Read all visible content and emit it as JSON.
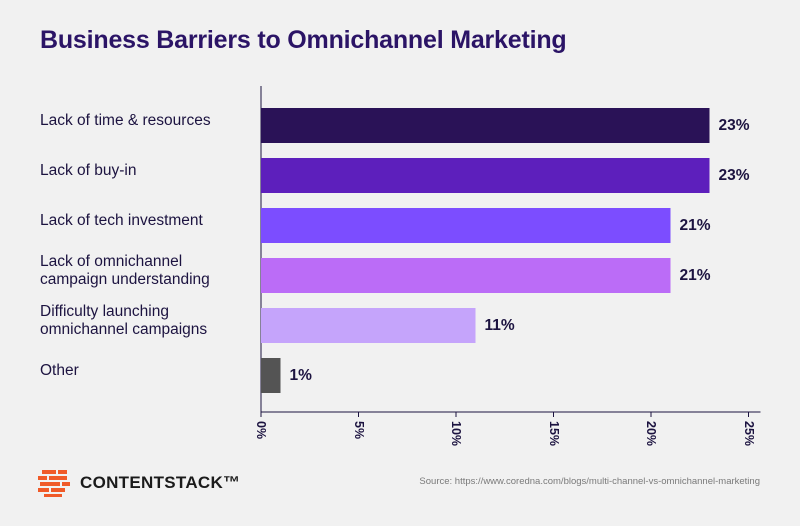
{
  "header": {
    "title": "Business Barriers to Omnichannel Marketing"
  },
  "chart_data": {
    "type": "bar",
    "orientation": "horizontal",
    "title": "Business Barriers to Omnichannel Marketing",
    "categories": [
      "Lack of time & resources",
      "Lack of buy-in",
      "Lack of tech investment",
      "Lack of omnichannel\ncampaign understanding",
      "Difficulty launching\nomnichannel campaigns",
      "Other"
    ],
    "values": [
      23,
      23,
      21,
      21,
      11,
      1
    ],
    "value_labels": [
      "23%",
      "23%",
      "21%",
      "21%",
      "11%",
      "1%"
    ],
    "colors": [
      "#2a1257",
      "#5d1fbc",
      "#7c4dff",
      "#bb6cf7",
      "#c5a4fb",
      "#545454"
    ],
    "xlim": [
      0,
      25
    ],
    "xticks": [
      0,
      5,
      10,
      15,
      20,
      25
    ],
    "xtick_labels": [
      "0%",
      "5%",
      "10%",
      "15%",
      "20%",
      "25%"
    ],
    "xlabel": "",
    "ylabel": "",
    "grid": false,
    "legend": "none"
  },
  "footer": {
    "logo_text": "CONTENTSTACK™",
    "source": "Source: https://www.coredna.com/blogs/multi-channel-vs-omnichannel-marketing"
  },
  "colors": {
    "title": "#2b1466",
    "text": "#1c1340",
    "background": "#f1f1f1"
  }
}
